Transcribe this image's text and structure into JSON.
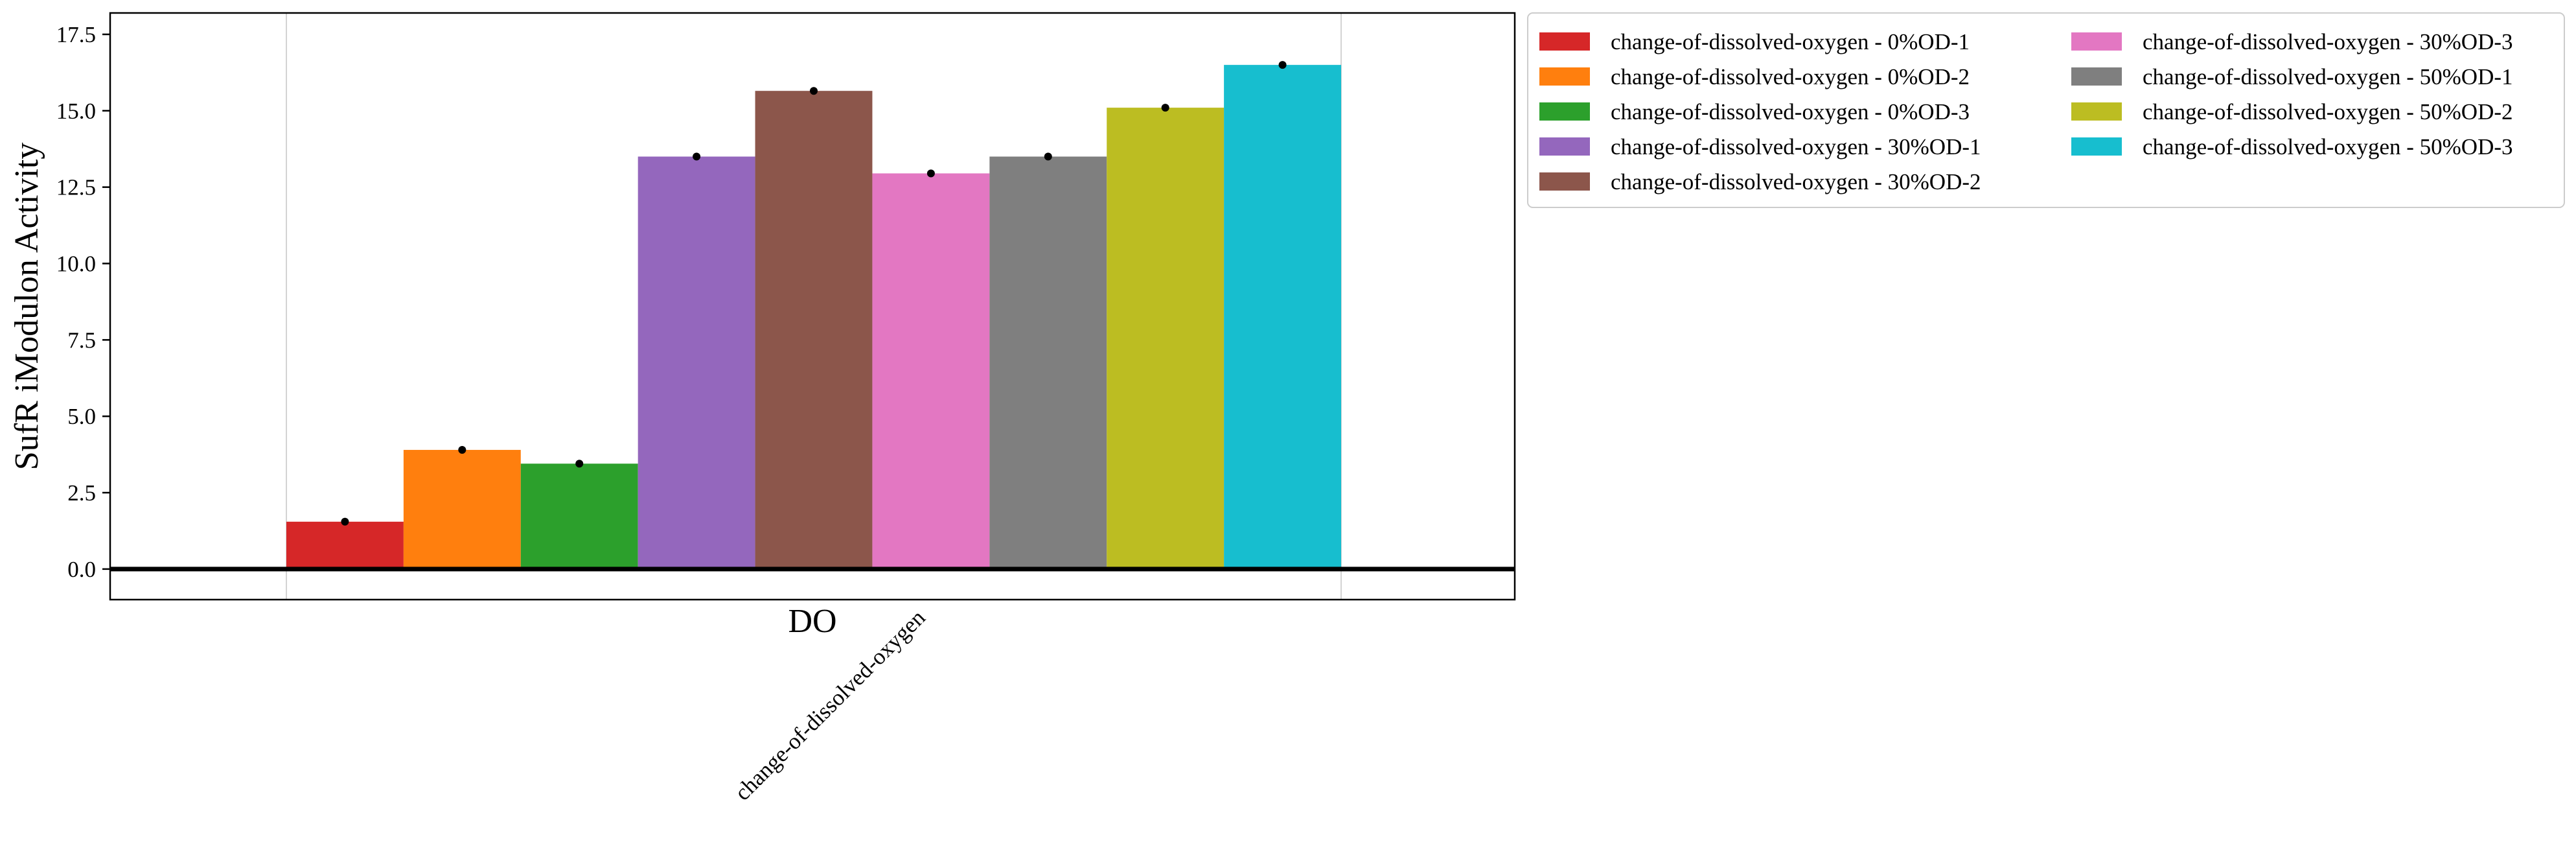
{
  "chart_data": {
    "type": "bar",
    "ylabel": "SufR iModulon Activity",
    "xlabel": "DO",
    "categories": [
      "change-of-dissolved-oxygen"
    ],
    "ylim": [
      -1.0,
      18.2
    ],
    "yticks": [
      "0.0",
      "2.5",
      "5.0",
      "7.5",
      "10.0",
      "12.5",
      "15.0",
      "17.5"
    ],
    "grid": "vertical lines at group edges",
    "legend_placement": "outside right, two columns",
    "series": [
      {
        "name": "change-of-dissolved-oxygen - 0%OD-1",
        "value": 1.55,
        "point": 1.55,
        "color": "#d62728"
      },
      {
        "name": "change-of-dissolved-oxygen - 0%OD-2",
        "value": 3.9,
        "point": 3.9,
        "color": "#ff7f0e"
      },
      {
        "name": "change-of-dissolved-oxygen - 0%OD-3",
        "value": 3.45,
        "point": 3.45,
        "color": "#2ca02c"
      },
      {
        "name": "change-of-dissolved-oxygen - 30%OD-1",
        "value": 13.5,
        "point": 13.5,
        "color": "#9467bd"
      },
      {
        "name": "change-of-dissolved-oxygen - 30%OD-2",
        "value": 15.65,
        "point": 15.65,
        "color": "#8c564b"
      },
      {
        "name": "change-of-dissolved-oxygen - 30%OD-3",
        "value": 12.95,
        "point": 12.95,
        "color": "#e377c2"
      },
      {
        "name": "change-of-dissolved-oxygen - 50%OD-1",
        "value": 13.5,
        "point": 13.5,
        "color": "#7f7f7f"
      },
      {
        "name": "change-of-dissolved-oxygen - 50%OD-2",
        "value": 15.1,
        "point": 15.1,
        "color": "#bcbd22"
      },
      {
        "name": "change-of-dissolved-oxygen - 50%OD-3",
        "value": 16.5,
        "point": 16.5,
        "color": "#17becf"
      }
    ]
  }
}
